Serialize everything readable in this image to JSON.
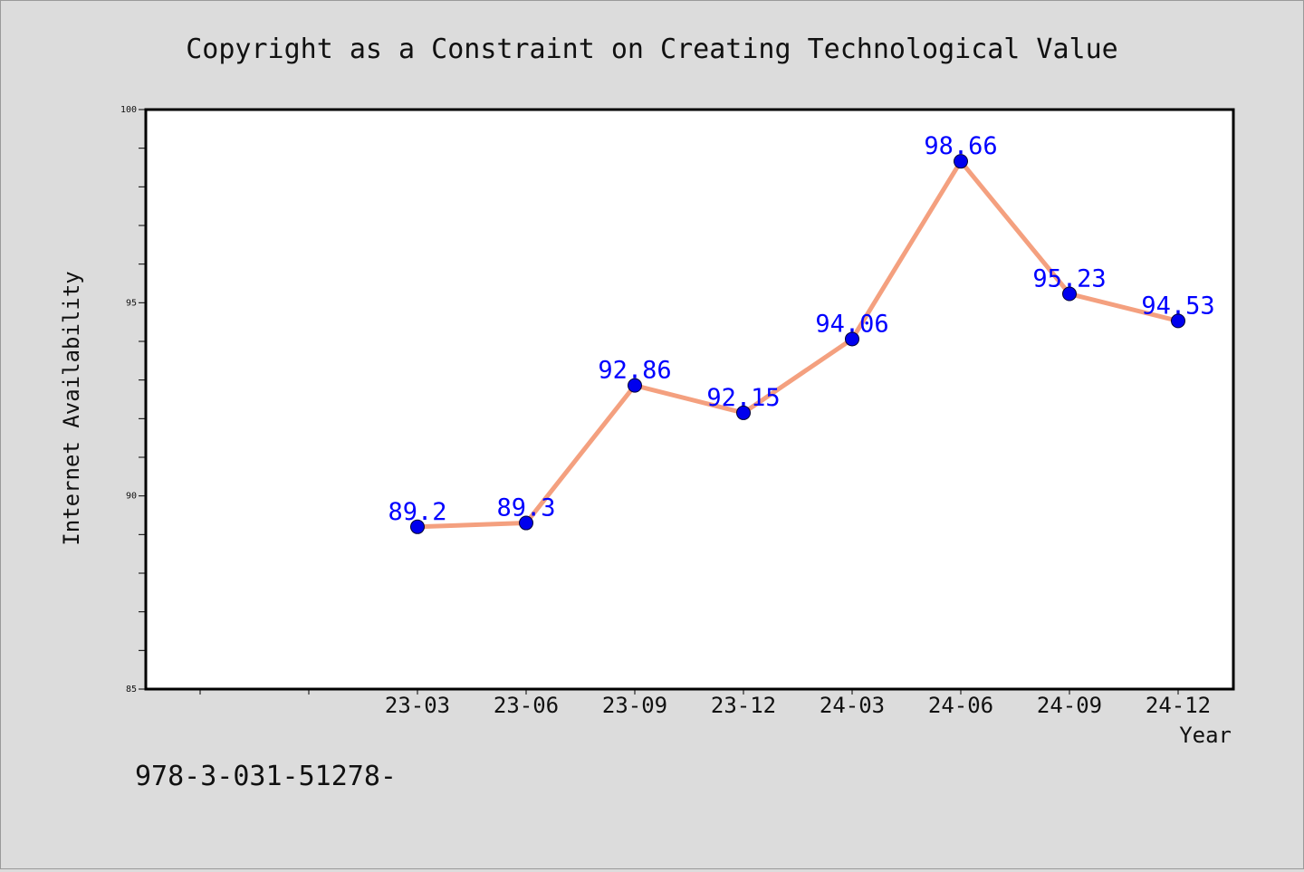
{
  "chart_data": {
    "type": "line",
    "title": "Copyright as a Constraint on Creating Technological Value",
    "xlabel": "Year",
    "ylabel": "Internet Availability",
    "categories": [
      "23-03",
      "23-06",
      "23-09",
      "23-12",
      "24-03",
      "24-06",
      "24-09",
      "24-12"
    ],
    "series": [
      {
        "values": [
          89.2,
          89.3,
          92.86,
          92.15,
          94.06,
          98.66,
          95.23,
          94.53
        ],
        "labels": [
          "89.2",
          "89.3",
          "92.86",
          "92.15",
          "94.06",
          "98.66",
          "95.23",
          "94.53"
        ]
      }
    ],
    "ylim": [
      85,
      100
    ],
    "yticks": [
      "85",
      "90",
      "95",
      "100"
    ],
    "grid": false,
    "colors": {
      "line": "#f4a07f",
      "marker": "#0000ee",
      "label": "#0000ff",
      "background": "#dcdcdc",
      "plot": "#ffffff"
    }
  },
  "footer": {
    "isbn": "978-3-031-51278-"
  }
}
